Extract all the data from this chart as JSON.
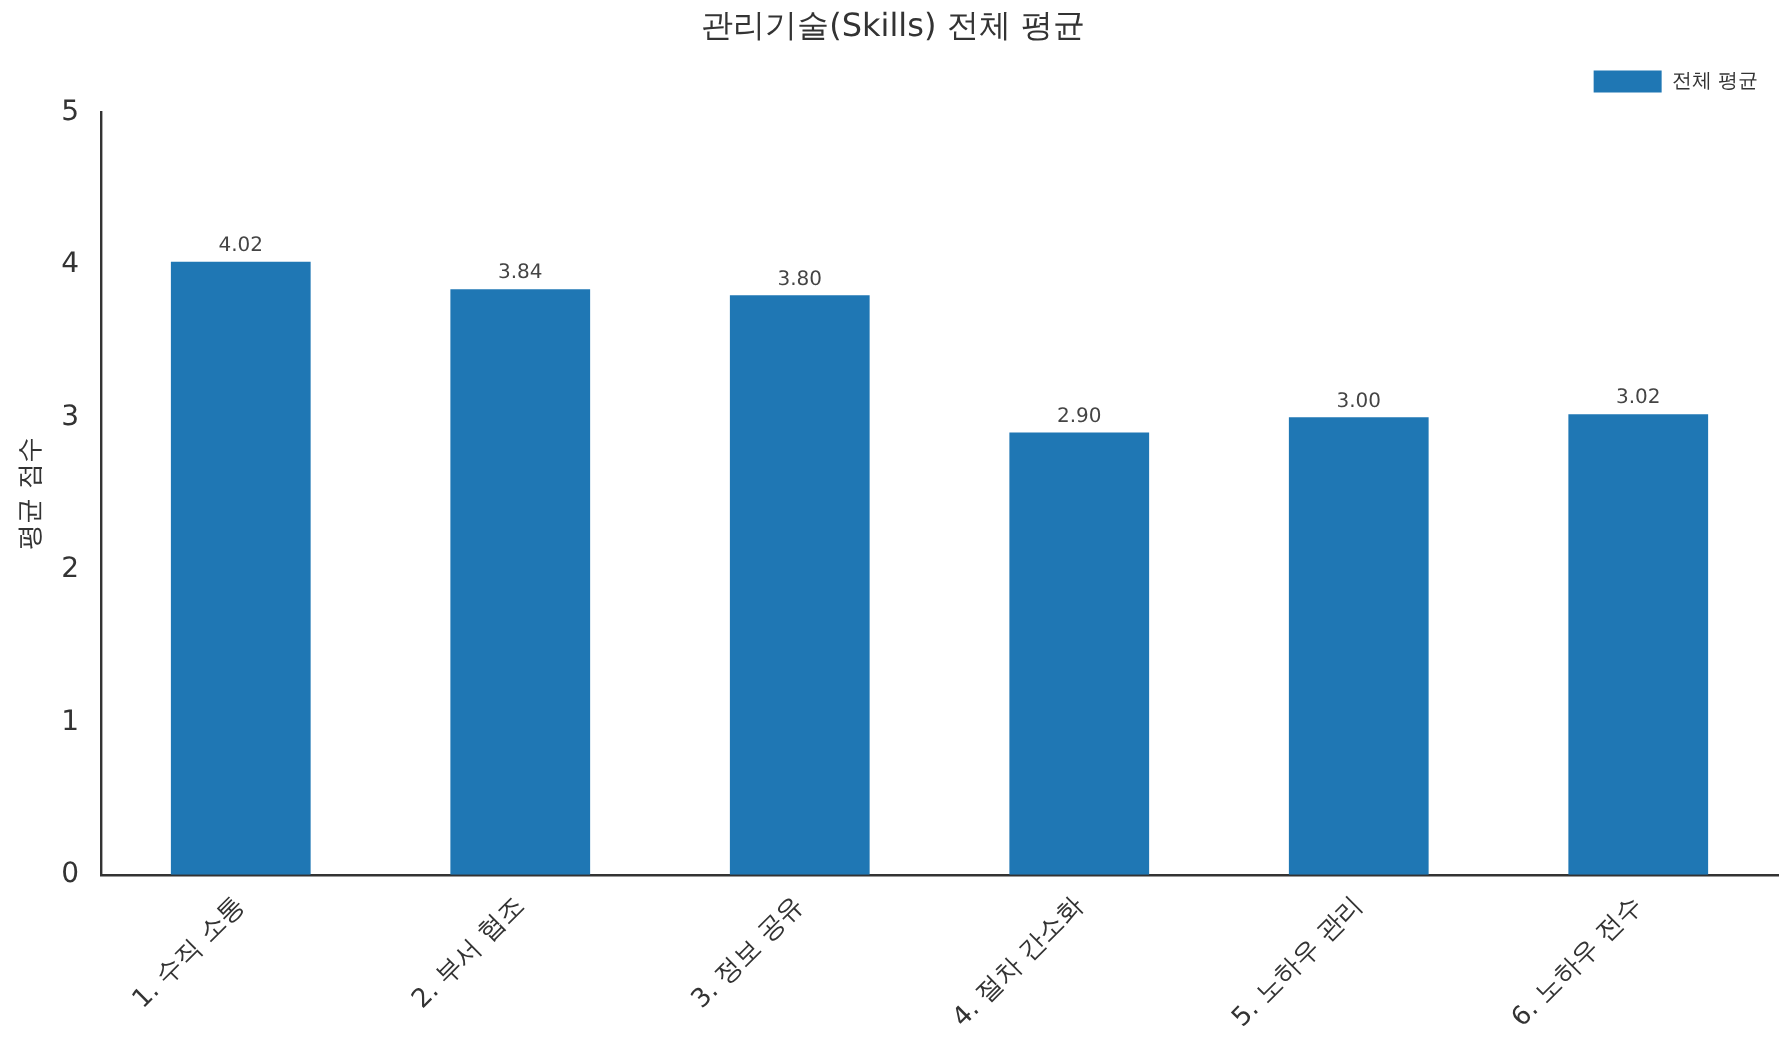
{
  "chart_data": {
    "type": "bar",
    "title": "관리기술(Skills) 전체 평균",
    "ylabel": "평균 점수",
    "categories": [
      "1. 수직 소통",
      "2. 부서 협조",
      "3. 정보 공유",
      "4. 절차 간소화",
      "5. 노하우 관리",
      "6. 노하우 전수"
    ],
    "series": [
      {
        "name": "전체 평균",
        "color": "#1f77b4",
        "values": [
          4.02,
          3.84,
          3.8,
          2.9,
          3.0,
          3.02
        ],
        "value_labels": [
          "4.02",
          "3.84",
          "3.80",
          "2.90",
          "3.00",
          "3.02"
        ]
      }
    ],
    "ylim": [
      0,
      5
    ],
    "yticks": [
      0,
      1,
      2,
      3,
      4,
      5
    ],
    "grid": false,
    "legend": "top right"
  }
}
